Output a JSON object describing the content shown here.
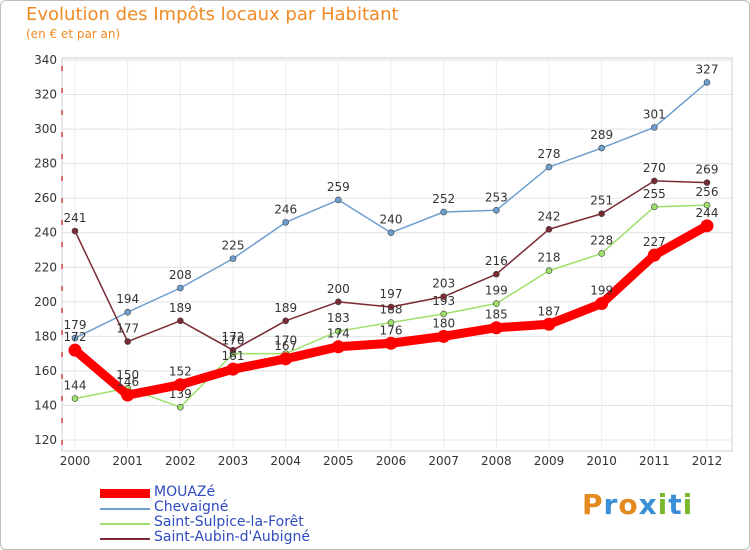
{
  "title": "Evolution des Impôts locaux par Habitant",
  "subtitle": "(en € et par an)",
  "logo": {
    "text": "Proxiti",
    "letters": [
      "P",
      "r",
      "o",
      "x",
      "i",
      "t",
      "i"
    ],
    "colors": [
      "#e58a1f",
      "#3a8fd6",
      "#e58a1f",
      "#3a8fd6",
      "#7ab82e",
      "#3a8fd6",
      "#7ab82e"
    ]
  },
  "chart_data": {
    "type": "line",
    "title": "Evolution des Impôts locaux par Habitant",
    "ylabel": "(en € et par an)",
    "xlabel": "",
    "x": [
      "2000",
      "2001",
      "2002",
      "2003",
      "2004",
      "2005",
      "2006",
      "2007",
      "2008",
      "2009",
      "2010",
      "2011",
      "2012"
    ],
    "ylim": [
      120,
      340
    ],
    "yticks": [
      120,
      140,
      160,
      180,
      200,
      220,
      240,
      260,
      280,
      300,
      320,
      340
    ],
    "grid": true,
    "series": [
      {
        "name": "MOUAZé",
        "color": "#ff0000",
        "values": [
          172,
          146,
          152,
          161,
          167,
          174,
          176,
          180,
          185,
          187,
          199,
          227,
          244
        ],
        "labels": [
          "172",
          "146",
          "152",
          "161",
          "167",
          "174",
          "176",
          "180",
          "185",
          "187",
          "199",
          "227",
          "244"
        ],
        "thick": true
      },
      {
        "name": "Chevaigné",
        "color": "#6c9fd0",
        "values": [
          179,
          194,
          208,
          225,
          246,
          259,
          240,
          252,
          253,
          278,
          289,
          301,
          327
        ],
        "labels": [
          "179",
          "194",
          "208",
          "225",
          "246",
          "259",
          "240",
          "252",
          "253",
          "278",
          "289",
          "301",
          "327"
        ],
        "thick": false
      },
      {
        "name": "Saint-Sulpice-la-Forêt",
        "color": "#9ee06a",
        "values": [
          144,
          150,
          139,
          170,
          170,
          183,
          188,
          193,
          199,
          218,
          228,
          255,
          256
        ],
        "labels": [
          "144",
          "150",
          "139",
          "170",
          "170",
          "183",
          "188",
          "193",
          "199",
          "218",
          "228",
          "255",
          "256"
        ],
        "thick": false
      },
      {
        "name": "Saint-Aubin-d'Aubigné",
        "color": "#7a2a32",
        "values": [
          241,
          177,
          189,
          172,
          189,
          200,
          197,
          203,
          216,
          242,
          251,
          270,
          269
        ],
        "labels": [
          "241",
          "177",
          "189",
          "172",
          "189",
          "200",
          "197",
          "203",
          "216",
          "242",
          "251",
          "270",
          "269"
        ],
        "thick": false
      }
    ]
  }
}
